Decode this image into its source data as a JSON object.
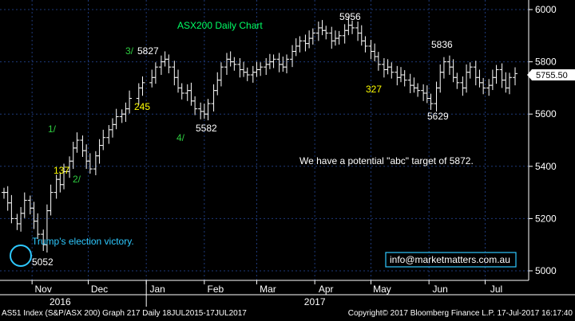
{
  "chart_data": {
    "type": "ohlc",
    "title": "ASX200 Daily Chart",
    "instrument_last": "5755.50",
    "ylim": [
      4980,
      6040
    ],
    "y_ticks": [
      5000,
      5200,
      5400,
      5600,
      5800,
      6000
    ],
    "y_tick_labels": [
      "5000",
      "5200",
      "5400",
      "5600",
      "5800",
      "6000"
    ],
    "x_ticks": [
      {
        "label": "Nov",
        "date": "2016-11-01"
      },
      {
        "label": "Dec",
        "date": "2016-12-01"
      },
      {
        "label": "Jan",
        "date": "2017-01-01"
      },
      {
        "label": "Feb",
        "date": "2017-02-01"
      },
      {
        "label": "Mar",
        "date": "2017-03-01"
      },
      {
        "label": "Apr",
        "date": "2017-04-01"
      },
      {
        "label": "May",
        "date": "2017-05-01"
      },
      {
        "label": "Jun",
        "date": "2017-06-01"
      },
      {
        "label": "Jul",
        "date": "2017-07-01"
      }
    ],
    "year_labels": [
      {
        "label": "2016",
        "date": "2016-11-16"
      },
      {
        "label": "2017",
        "date": "2017-04-01"
      }
    ],
    "dates": [
      "2016-10-17",
      "2016-10-19",
      "2016-10-21",
      "2016-10-24",
      "2016-10-26",
      "2016-10-28",
      "2016-10-31",
      "2016-11-02",
      "2016-11-04",
      "2016-11-07",
      "2016-11-09",
      "2016-11-11",
      "2016-11-14",
      "2016-11-16",
      "2016-11-18",
      "2016-11-21",
      "2016-11-23",
      "2016-11-25",
      "2016-11-28",
      "2016-11-30",
      "2016-12-02",
      "2016-12-05",
      "2016-12-07",
      "2016-12-09",
      "2016-12-12",
      "2016-12-14",
      "2016-12-16",
      "2016-12-19",
      "2016-12-21",
      "2016-12-23",
      "2016-12-28",
      "2016-12-30",
      "2017-01-04",
      "2017-01-06",
      "2017-01-09",
      "2017-01-11",
      "2017-01-13",
      "2017-01-16",
      "2017-01-18",
      "2017-01-20",
      "2017-01-23",
      "2017-01-25",
      "2017-01-27",
      "2017-01-30",
      "2017-02-01",
      "2017-02-03",
      "2017-02-06",
      "2017-02-08",
      "2017-02-10",
      "2017-02-13",
      "2017-02-15",
      "2017-02-17",
      "2017-02-20",
      "2017-02-22",
      "2017-02-24",
      "2017-02-27",
      "2017-03-01",
      "2017-03-03",
      "2017-03-06",
      "2017-03-08",
      "2017-03-10",
      "2017-03-13",
      "2017-03-15",
      "2017-03-17",
      "2017-03-20",
      "2017-03-22",
      "2017-03-24",
      "2017-03-27",
      "2017-03-29",
      "2017-03-31",
      "2017-04-03",
      "2017-04-05",
      "2017-04-07",
      "2017-04-10",
      "2017-04-12",
      "2017-04-14",
      "2017-04-17",
      "2017-04-19",
      "2017-04-21",
      "2017-04-24",
      "2017-04-26",
      "2017-04-28",
      "2017-05-01",
      "2017-05-03",
      "2017-05-05",
      "2017-05-08",
      "2017-05-10",
      "2017-05-12",
      "2017-05-15",
      "2017-05-17",
      "2017-05-19",
      "2017-05-22",
      "2017-05-24",
      "2017-05-26",
      "2017-05-29",
      "2017-05-31",
      "2017-06-02",
      "2017-06-05",
      "2017-06-07",
      "2017-06-09",
      "2017-06-12",
      "2017-06-14",
      "2017-06-16",
      "2017-06-19",
      "2017-06-21",
      "2017-06-23",
      "2017-06-26",
      "2017-06-28",
      "2017-06-30",
      "2017-07-03",
      "2017-07-05",
      "2017-07-07",
      "2017-07-10",
      "2017-07-12",
      "2017-07-14",
      "2017-07-17"
    ],
    "close": [
      5300,
      5260,
      5200,
      5180,
      5220,
      5270,
      5240,
      5190,
      5140,
      5100,
      5230,
      5300,
      5350,
      5330,
      5380,
      5420,
      5470,
      5500,
      5460,
      5420,
      5390,
      5440,
      5480,
      5510,
      5540,
      5560,
      5590,
      5600,
      5620,
      5660,
      5700,
      5720,
      5740,
      5780,
      5800,
      5810,
      5780,
      5740,
      5700,
      5680,
      5690,
      5650,
      5620,
      5610,
      5600,
      5640,
      5690,
      5730,
      5780,
      5810,
      5800,
      5790,
      5770,
      5760,
      5750,
      5760,
      5770,
      5780,
      5790,
      5800,
      5810,
      5790,
      5780,
      5810,
      5840,
      5860,
      5880,
      5870,
      5890,
      5910,
      5930,
      5920,
      5910,
      5880,
      5890,
      5900,
      5920,
      5940,
      5930,
      5910,
      5880,
      5860,
      5840,
      5820,
      5790,
      5770,
      5780,
      5760,
      5740,
      5750,
      5730,
      5710,
      5700,
      5690,
      5680,
      5660,
      5640,
      5700,
      5760,
      5800,
      5780,
      5740,
      5720,
      5700,
      5760,
      5780,
      5740,
      5720,
      5700,
      5710,
      5740,
      5770,
      5730,
      5700,
      5740,
      5755
    ]
  },
  "annotations": {
    "wave_3_label": "3/",
    "wave_3_value": "5827",
    "wave_1_label": "1/",
    "wave_2_label": "2/",
    "wave_4_label": "4/",
    "wave_4_value": "5582",
    "low_value": "5052",
    "election_text": "Trump's election victory.",
    "pts_137": "137",
    "pts_245": "245",
    "pts_327": "327",
    "peak_value": "5956",
    "peak2_value": "5836",
    "low2_value": "5629",
    "target_text": "We have a potential \"abc\" target of 5872.",
    "email": "info@marketmatters.com.au"
  },
  "footer": {
    "left": "AS51 Index (S&P/ASX 200) Graph 217  Daily 18JUL2015-17JUL2017",
    "right": "Copyright© 2017 Bloomberg Finance L.P.      17-Jul-2017 16:17:40"
  },
  "colors": {
    "background": "#000000",
    "bars": "#ffffff",
    "wave_labels": "#2ecc40",
    "point_labels": "#ffff00",
    "title": "#00ff66",
    "election": "#2ec9ff",
    "email_box": "#2ec9ff",
    "axis_grid": "#1e3a7a"
  }
}
